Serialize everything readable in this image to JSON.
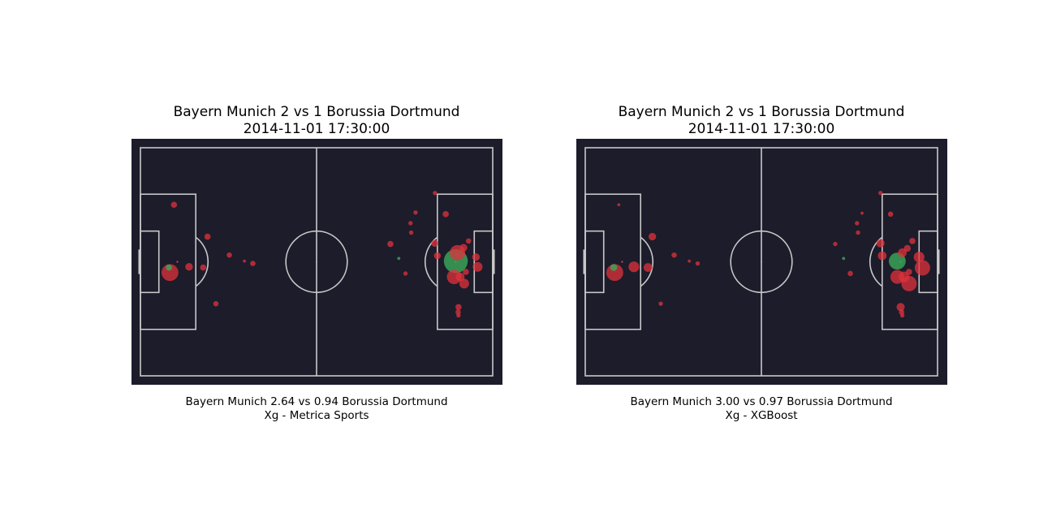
{
  "colors": {
    "pitch_background": "#1c1c2b",
    "pitch_lines": "#c8c8c8",
    "shot": "#e0323c",
    "goal": "#3caa5a"
  },
  "chart_data": [
    {
      "type": "scatter",
      "title_line1": "Bayern Munich 2 vs 1 Borussia Dortmund",
      "title_line2": "2014-11-01 17:30:00",
      "caption_line1": "Bayern Munich 2.64 vs 0.94 Borussia Dortmund",
      "caption_line2": "Xg - Metrica Sports",
      "pitch": {
        "length": 105,
        "width": 68
      },
      "shots": [
        {
          "x": 10.0,
          "y": 17.0,
          "xg": 0.04,
          "goal": false
        },
        {
          "x": 20.0,
          "y": 26.5,
          "xg": 0.04,
          "goal": false
        },
        {
          "x": 14.5,
          "y": 35.5,
          "xg": 0.06,
          "goal": false
        },
        {
          "x": 18.7,
          "y": 35.7,
          "xg": 0.04,
          "goal": false
        },
        {
          "x": 8.8,
          "y": 37.2,
          "xg": 0.3,
          "goal": false
        },
        {
          "x": 8.5,
          "y": 35.7,
          "xg": 0.04,
          "goal": true
        },
        {
          "x": 11.0,
          "y": 34.0,
          "xg": 0.003,
          "goal": false
        },
        {
          "x": 22.5,
          "y": 46.5,
          "xg": 0.03,
          "goal": false
        },
        {
          "x": 26.5,
          "y": 32.0,
          "xg": 0.03,
          "goal": false
        },
        {
          "x": 31.0,
          "y": 33.8,
          "xg": 0.01,
          "goal": false
        },
        {
          "x": 33.5,
          "y": 34.5,
          "xg": 0.03,
          "goal": false
        },
        {
          "x": 87.8,
          "y": 13.5,
          "xg": 0.02,
          "goal": false
        },
        {
          "x": 82.0,
          "y": 19.3,
          "xg": 0.02,
          "goal": false
        },
        {
          "x": 91.0,
          "y": 19.8,
          "xg": 0.04,
          "goal": false
        },
        {
          "x": 80.5,
          "y": 22.5,
          "xg": 0.02,
          "goal": false
        },
        {
          "x": 80.7,
          "y": 25.3,
          "xg": 0.02,
          "goal": false
        },
        {
          "x": 74.5,
          "y": 28.7,
          "xg": 0.04,
          "goal": false
        },
        {
          "x": 87.7,
          "y": 28.5,
          "xg": 0.05,
          "goal": false
        },
        {
          "x": 97.8,
          "y": 27.8,
          "xg": 0.03,
          "goal": false
        },
        {
          "x": 96.3,
          "y": 29.8,
          "xg": 0.06,
          "goal": false
        },
        {
          "x": 94.5,
          "y": 31.3,
          "xg": 0.25,
          "goal": false
        },
        {
          "x": 88.5,
          "y": 32.2,
          "xg": 0.05,
          "goal": false
        },
        {
          "x": 100.0,
          "y": 32.6,
          "xg": 0.06,
          "goal": false
        },
        {
          "x": 77.0,
          "y": 33.0,
          "xg": 0.01,
          "goal": true
        },
        {
          "x": 94.0,
          "y": 33.8,
          "xg": 0.6,
          "goal": true
        },
        {
          "x": 100.5,
          "y": 35.5,
          "xg": 0.1,
          "goal": false
        },
        {
          "x": 97.0,
          "y": 37.0,
          "xg": 0.04,
          "goal": false
        },
        {
          "x": 79.0,
          "y": 37.5,
          "xg": 0.02,
          "goal": false
        },
        {
          "x": 93.5,
          "y": 38.5,
          "xg": 0.22,
          "goal": false
        },
        {
          "x": 95.3,
          "y": 38.5,
          "xg": 0.08,
          "goal": false
        },
        {
          "x": 96.5,
          "y": 40.5,
          "xg": 0.1,
          "goal": false
        },
        {
          "x": 94.8,
          "y": 47.5,
          "xg": 0.04,
          "goal": false
        },
        {
          "x": 94.7,
          "y": 49.0,
          "xg": 0.03,
          "goal": false
        },
        {
          "x": 94.8,
          "y": 50.0,
          "xg": 0.02,
          "goal": false
        }
      ]
    },
    {
      "type": "scatter",
      "title_line1": "Bayern Munich 2 vs 1 Borussia Dortmund",
      "title_line2": "2014-11-01 17:30:00",
      "caption_line1": "Bayern Munich 3.00 vs 0.97 Borussia Dortmund",
      "caption_line2": "Xg - XGBoost",
      "pitch": {
        "length": 105,
        "width": 68
      },
      "shots": [
        {
          "x": 10.0,
          "y": 17.0,
          "xg": 0.01,
          "goal": false
        },
        {
          "x": 20.0,
          "y": 26.5,
          "xg": 0.06,
          "goal": false
        },
        {
          "x": 14.5,
          "y": 35.5,
          "xg": 0.12,
          "goal": false
        },
        {
          "x": 18.7,
          "y": 35.7,
          "xg": 0.08,
          "goal": false
        },
        {
          "x": 8.8,
          "y": 37.2,
          "xg": 0.3,
          "goal": false
        },
        {
          "x": 8.5,
          "y": 35.7,
          "xg": 0.05,
          "goal": true
        },
        {
          "x": 11.0,
          "y": 34.0,
          "xg": 0.003,
          "goal": false
        },
        {
          "x": 22.5,
          "y": 46.5,
          "xg": 0.02,
          "goal": false
        },
        {
          "x": 26.5,
          "y": 32.0,
          "xg": 0.03,
          "goal": false
        },
        {
          "x": 31.0,
          "y": 33.8,
          "xg": 0.01,
          "goal": false
        },
        {
          "x": 33.5,
          "y": 34.5,
          "xg": 0.02,
          "goal": false
        },
        {
          "x": 88.0,
          "y": 13.5,
          "xg": 0.02,
          "goal": false
        },
        {
          "x": 82.5,
          "y": 19.5,
          "xg": 0.01,
          "goal": false
        },
        {
          "x": 91.0,
          "y": 19.8,
          "xg": 0.03,
          "goal": false
        },
        {
          "x": 81.0,
          "y": 22.5,
          "xg": 0.02,
          "goal": false
        },
        {
          "x": 81.3,
          "y": 25.3,
          "xg": 0.02,
          "goal": false
        },
        {
          "x": 74.5,
          "y": 28.7,
          "xg": 0.02,
          "goal": false
        },
        {
          "x": 88.0,
          "y": 28.5,
          "xg": 0.07,
          "goal": false
        },
        {
          "x": 97.5,
          "y": 27.8,
          "xg": 0.04,
          "goal": false
        },
        {
          "x": 96.0,
          "y": 30.0,
          "xg": 0.05,
          "goal": false
        },
        {
          "x": 94.5,
          "y": 31.3,
          "xg": 0.08,
          "goal": false
        },
        {
          "x": 88.5,
          "y": 32.2,
          "xg": 0.08,
          "goal": false
        },
        {
          "x": 99.5,
          "y": 32.6,
          "xg": 0.12,
          "goal": false
        },
        {
          "x": 77.0,
          "y": 33.0,
          "xg": 0.01,
          "goal": true
        },
        {
          "x": 93.0,
          "y": 33.8,
          "xg": 0.3,
          "goal": true
        },
        {
          "x": 100.5,
          "y": 35.8,
          "xg": 0.25,
          "goal": false
        },
        {
          "x": 96.5,
          "y": 37.0,
          "xg": 0.04,
          "goal": false
        },
        {
          "x": 79.0,
          "y": 37.5,
          "xg": 0.03,
          "goal": false
        },
        {
          "x": 93.0,
          "y": 38.5,
          "xg": 0.2,
          "goal": false
        },
        {
          "x": 95.0,
          "y": 38.5,
          "xg": 0.12,
          "goal": false
        },
        {
          "x": 96.5,
          "y": 40.5,
          "xg": 0.25,
          "goal": false
        },
        {
          "x": 94.0,
          "y": 47.5,
          "xg": 0.07,
          "goal": false
        },
        {
          "x": 94.3,
          "y": 49.0,
          "xg": 0.03,
          "goal": false
        },
        {
          "x": 94.5,
          "y": 50.0,
          "xg": 0.02,
          "goal": false
        }
      ]
    }
  ]
}
